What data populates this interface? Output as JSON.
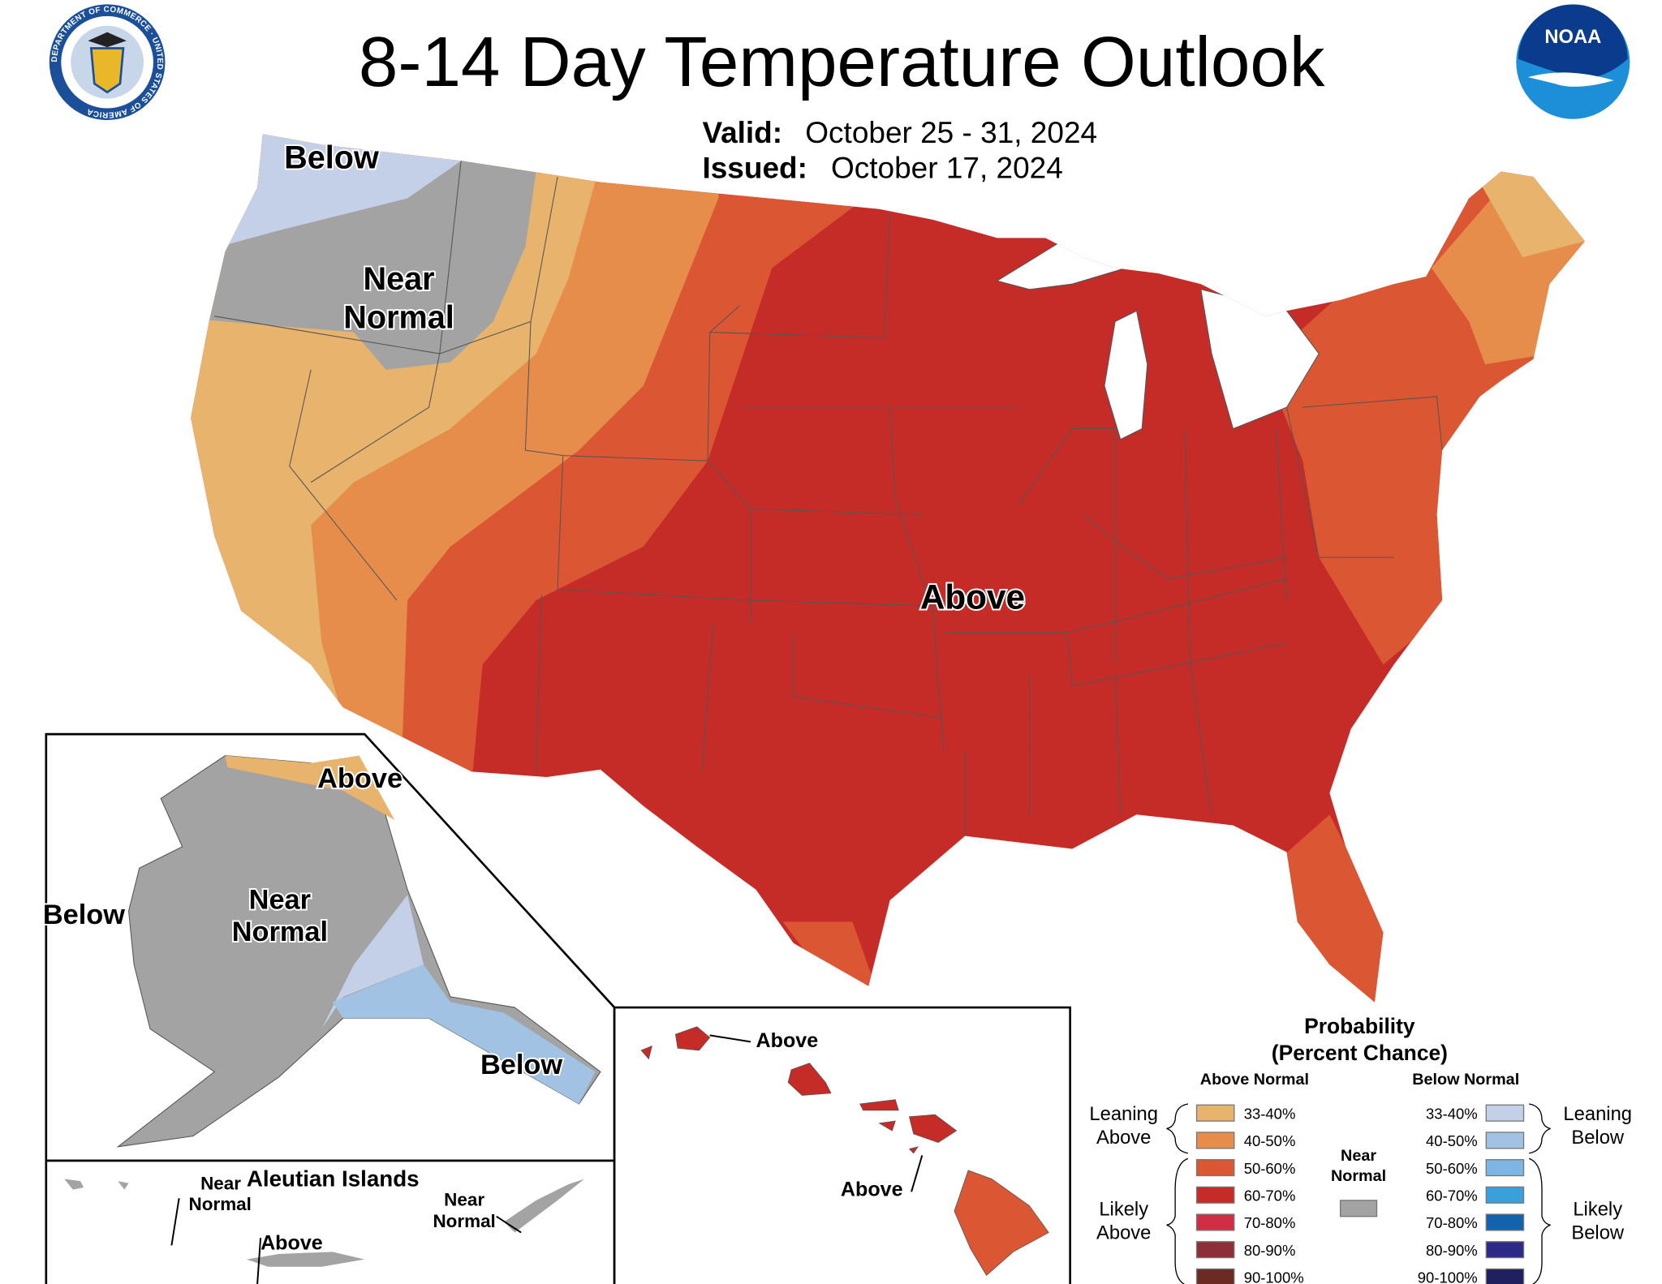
{
  "header": {
    "title": "8-14 Day Temperature Outlook",
    "valid_label": "Valid:",
    "valid_value": "October 25 - 31, 2024",
    "issued_label": "Issued:",
    "issued_value": "October 17, 2024",
    "left_logo_text": "DEPARTMENT OF COMMERCE · UNITED STATES OF AMERICA",
    "right_logo_text": "NOAA"
  },
  "map_labels": {
    "conus_below": "Below",
    "conus_near_1": "Near",
    "conus_near_2": "Normal",
    "conus_above": "Above",
    "ak_above": "Above",
    "ak_below_west": "Below",
    "ak_near_1": "Near",
    "ak_near_2": "Normal",
    "ak_below_se": "Below",
    "aleutian_title": "Aleutian Islands",
    "aleutian_near_w_1": "Near",
    "aleutian_near_w_2": "Normal",
    "aleutian_above": "Above",
    "aleutian_near_e_1": "Near",
    "aleutian_near_e_2": "Normal",
    "hi_above_1": "Above",
    "hi_above_2": "Above"
  },
  "colors": {
    "near_normal": "#A3A3A3",
    "above": [
      "#E8B36C",
      "#E68D4B",
      "#DB5632",
      "#C62C27",
      "#D12D45",
      "#8D2F36",
      "#6B2B22"
    ],
    "below": [
      "#C4D0E8",
      "#A2C2E4",
      "#7DB6E4",
      "#39A0DB",
      "#1262B0",
      "#2C2A86",
      "#20205E"
    ]
  },
  "legend": {
    "title_1": "Probability",
    "title_2": "(Percent Chance)",
    "above_header": "Above Normal",
    "below_header": "Below Normal",
    "leaning_above_1": "Leaning",
    "leaning_above_2": "Above",
    "likely_above_1": "Likely",
    "likely_above_2": "Above",
    "leaning_below_1": "Leaning",
    "leaning_below_2": "Below",
    "likely_below_1": "Likely",
    "likely_below_2": "Below",
    "near_1": "Near",
    "near_2": "Normal",
    "ranges": [
      "33-40%",
      "40-50%",
      "50-60%",
      "60-70%",
      "70-80%",
      "80-90%",
      "90-100%"
    ]
  }
}
